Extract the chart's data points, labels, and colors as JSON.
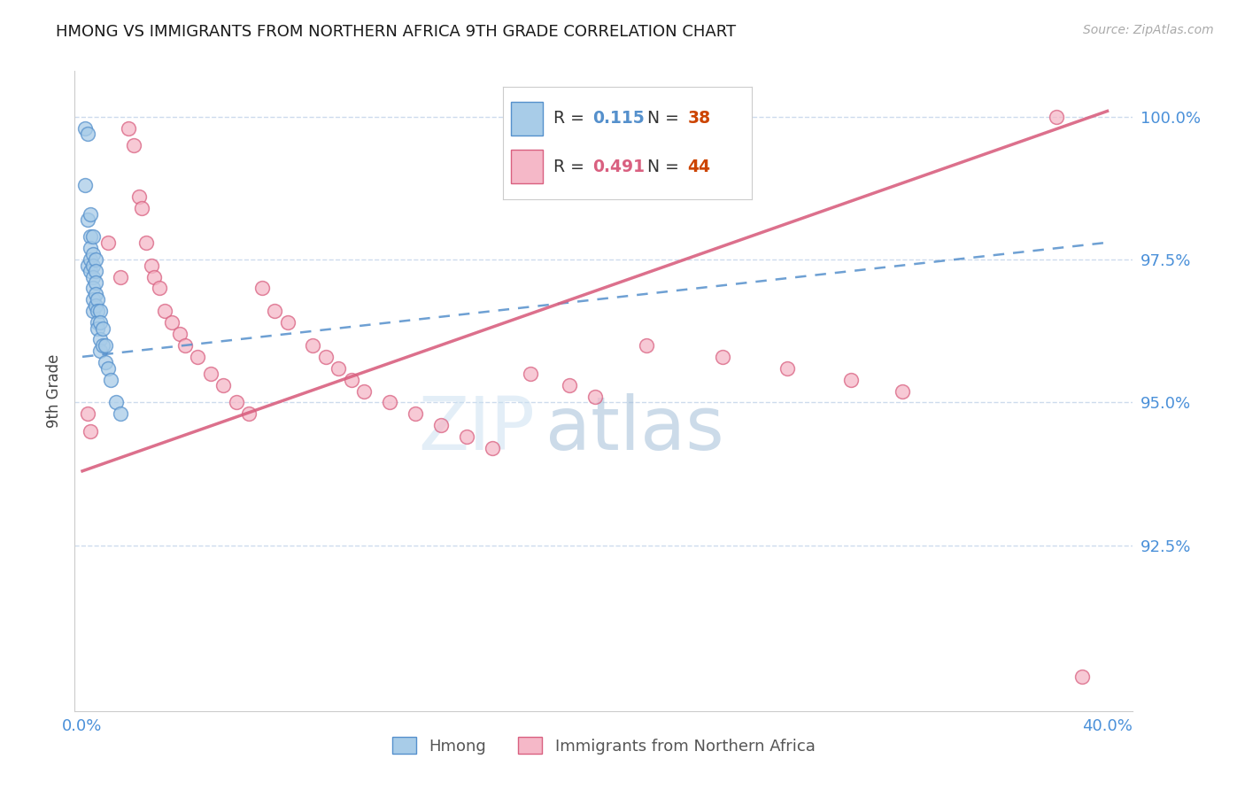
{
  "title": "HMONG VS IMMIGRANTS FROM NORTHERN AFRICA 9TH GRADE CORRELATION CHART",
  "source": "Source: ZipAtlas.com",
  "ylabel": "9th Grade",
  "watermark_zip": "ZIP",
  "watermark_atlas": "atlas",
  "legend_blue_r": "0.115",
  "legend_blue_n": "38",
  "legend_pink_r": "0.491",
  "legend_pink_n": "44",
  "xlim": [
    -0.003,
    0.41
  ],
  "ylim": [
    0.896,
    1.008
  ],
  "yticks": [
    0.925,
    0.95,
    0.975,
    1.0
  ],
  "ytick_labels": [
    "92.5%",
    "95.0%",
    "97.5%",
    "100.0%"
  ],
  "xticks": [
    0.0,
    0.05,
    0.1,
    0.15,
    0.2,
    0.25,
    0.3,
    0.35,
    0.4
  ],
  "xtick_labels": [
    "0.0%",
    "",
    "",
    "",
    "",
    "",
    "",
    "",
    "40.0%"
  ],
  "blue_fill": "#a8cce8",
  "pink_fill": "#f5b8c8",
  "blue_edge": "#5590cc",
  "pink_edge": "#d96080",
  "blue_line": "#5590cc",
  "pink_line": "#d96080",
  "axis_label_color": "#4a90d9",
  "grid_color": "#c8d8ec",
  "blue_x": [
    0.001,
    0.001,
    0.002,
    0.002,
    0.002,
    0.003,
    0.003,
    0.003,
    0.003,
    0.003,
    0.004,
    0.004,
    0.004,
    0.004,
    0.004,
    0.004,
    0.004,
    0.005,
    0.005,
    0.005,
    0.005,
    0.005,
    0.006,
    0.006,
    0.006,
    0.006,
    0.007,
    0.007,
    0.007,
    0.007,
    0.008,
    0.008,
    0.009,
    0.009,
    0.01,
    0.011,
    0.013,
    0.015
  ],
  "blue_y": [
    0.998,
    0.988,
    0.997,
    0.982,
    0.974,
    0.983,
    0.979,
    0.977,
    0.975,
    0.973,
    0.979,
    0.976,
    0.974,
    0.972,
    0.97,
    0.968,
    0.966,
    0.975,
    0.973,
    0.971,
    0.969,
    0.967,
    0.968,
    0.966,
    0.964,
    0.963,
    0.966,
    0.964,
    0.961,
    0.959,
    0.963,
    0.96,
    0.96,
    0.957,
    0.956,
    0.954,
    0.95,
    0.948
  ],
  "pink_x": [
    0.002,
    0.003,
    0.018,
    0.02,
    0.022,
    0.023,
    0.025,
    0.027,
    0.028,
    0.03,
    0.032,
    0.035,
    0.038,
    0.04,
    0.045,
    0.05,
    0.055,
    0.06,
    0.065,
    0.07,
    0.075,
    0.08,
    0.09,
    0.095,
    0.1,
    0.105,
    0.11,
    0.12,
    0.13,
    0.14,
    0.15,
    0.16,
    0.175,
    0.19,
    0.2,
    0.22,
    0.25,
    0.275,
    0.3,
    0.32,
    0.38,
    0.39,
    0.01,
    0.015
  ],
  "pink_y": [
    0.948,
    0.945,
    0.998,
    0.995,
    0.986,
    0.984,
    0.978,
    0.974,
    0.972,
    0.97,
    0.966,
    0.964,
    0.962,
    0.96,
    0.958,
    0.955,
    0.953,
    0.95,
    0.948,
    0.97,
    0.966,
    0.964,
    0.96,
    0.958,
    0.956,
    0.954,
    0.952,
    0.95,
    0.948,
    0.946,
    0.944,
    0.942,
    0.955,
    0.953,
    0.951,
    0.96,
    0.958,
    0.956,
    0.954,
    0.952,
    1.0,
    0.902,
    0.978,
    0.972
  ],
  "blue_trend_x": [
    0.0,
    0.4
  ],
  "blue_trend_y": [
    0.958,
    0.978
  ],
  "pink_trend_x": [
    0.0,
    0.4
  ],
  "pink_trend_y": [
    0.938,
    1.001
  ]
}
